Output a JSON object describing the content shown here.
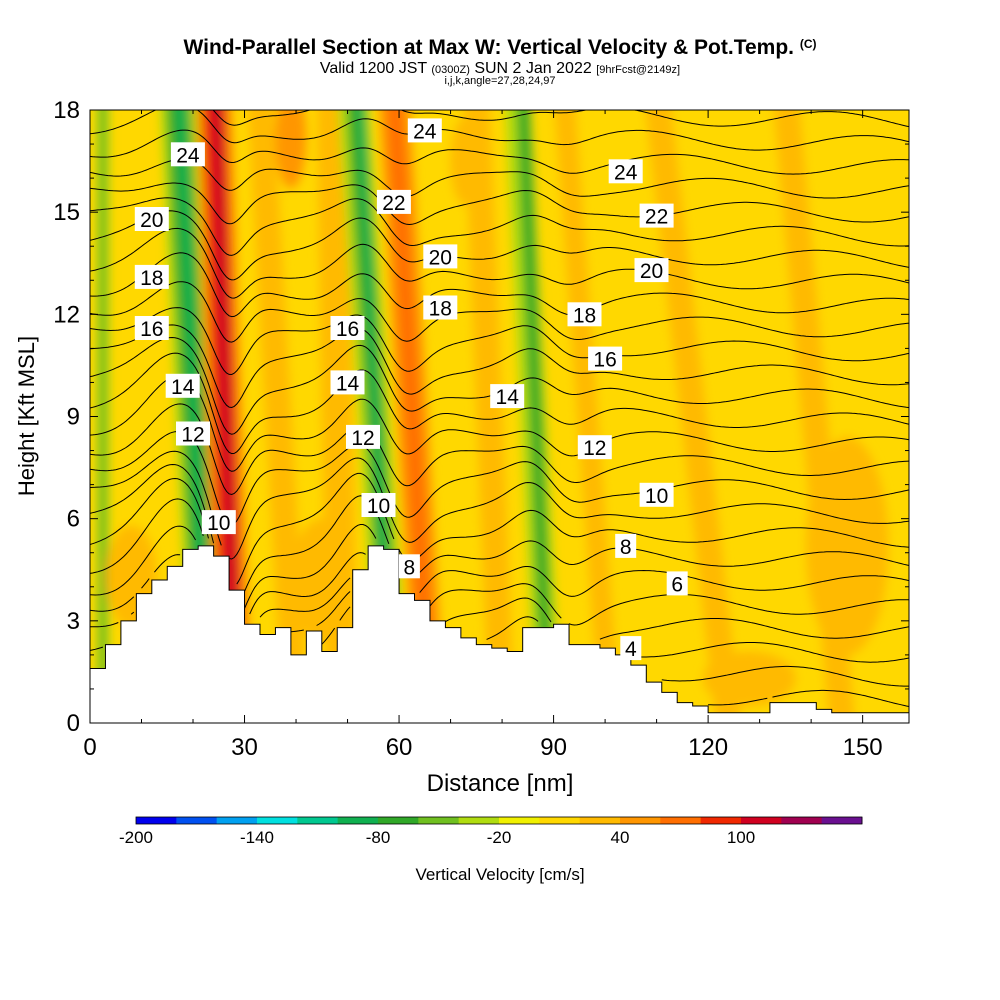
{
  "titles": {
    "main": "Wind-Parallel Section at Max W: Vertical Velocity & Pot.Temp.",
    "copyright": "(C)",
    "valid_a": "Valid 1200 JST",
    "valid_b": "(0300Z)",
    "valid_c": "SUN 2 Jan 2022",
    "valid_d": "[9hrFcst@2149z]",
    "indices": "i,j,k,angle=27,28,24,97"
  },
  "chart_data": {
    "type": "heatmap",
    "xlabel": "Distance [nm]",
    "ylabel": "Height [Kft MSL]",
    "xlim": [
      0,
      159
    ],
    "ylim": [
      0,
      18
    ],
    "xticks": [
      0,
      30,
      60,
      90,
      120,
      150
    ],
    "yticks": [
      0,
      3,
      6,
      9,
      12,
      15,
      18
    ],
    "grid": false,
    "colorbar": {
      "label": "Vertical Velocity [cm/s]",
      "tick_values": [
        -200,
        -140,
        -80,
        -20,
        40,
        100
      ],
      "levels": [
        -200,
        -180,
        -160,
        -140,
        -120,
        -100,
        -80,
        -60,
        -40,
        -20,
        0,
        20,
        40,
        60,
        80,
        100,
        120,
        140
      ],
      "colors": [
        "#0000ee",
        "#0050f0",
        "#00a0f0",
        "#00e0e0",
        "#00c890",
        "#10b050",
        "#30a828",
        "#70c020",
        "#b0dc10",
        "#f0f000",
        "#ffd800",
        "#ffba00",
        "#ff9600",
        "#ff6e00",
        "#f02800",
        "#d00020",
        "#a00050",
        "#6a1090"
      ]
    },
    "terrain_height_kft": {
      "distance": [
        0,
        3,
        6,
        9,
        12,
        15,
        18,
        21,
        24,
        27,
        30,
        33,
        36,
        39,
        42,
        45,
        48,
        51,
        54,
        57,
        60,
        63,
        66,
        69,
        72,
        75,
        78,
        81,
        84,
        87,
        90,
        93,
        96,
        99,
        102,
        105,
        108,
        111,
        114,
        117,
        120,
        123,
        126,
        129,
        132,
        135,
        138,
        141,
        144,
        147,
        150,
        153,
        156,
        159
      ],
      "height": [
        1.6,
        2.3,
        3.0,
        3.8,
        4.2,
        4.6,
        5.1,
        5.2,
        4.9,
        3.9,
        2.9,
        2.6,
        2.8,
        2.0,
        2.7,
        2.1,
        2.8,
        4.5,
        5.2,
        5.1,
        3.8,
        3.6,
        3.0,
        2.8,
        2.5,
        2.3,
        2.2,
        2.1,
        2.8,
        2.8,
        2.9,
        2.3,
        2.3,
        2.2,
        2.0,
        1.7,
        1.2,
        0.9,
        0.6,
        0.5,
        0.3,
        0.3,
        0.3,
        0.3,
        0.6,
        0.6,
        0.6,
        0.4,
        0.3,
        0.3,
        0.3,
        0.3,
        0.3,
        0.3
      ]
    },
    "theta_contours": {
      "levels": [
        4,
        6,
        8,
        10,
        12,
        14,
        16,
        18,
        20,
        22,
        24
      ],
      "labels": [
        {
          "text": "24",
          "x": 19,
          "y": 16.7
        },
        {
          "text": "24",
          "x": 65,
          "y": 17.4
        },
        {
          "text": "24",
          "x": 104,
          "y": 16.2
        },
        {
          "text": "22",
          "x": 59,
          "y": 15.3
        },
        {
          "text": "22",
          "x": 110,
          "y": 14.9
        },
        {
          "text": "20",
          "x": 12,
          "y": 14.8
        },
        {
          "text": "20",
          "x": 68,
          "y": 13.7
        },
        {
          "text": "20",
          "x": 109,
          "y": 13.3
        },
        {
          "text": "18",
          "x": 12,
          "y": 13.1
        },
        {
          "text": "18",
          "x": 68,
          "y": 12.2
        },
        {
          "text": "18",
          "x": 96,
          "y": 12.0
        },
        {
          "text": "16",
          "x": 12,
          "y": 11.6
        },
        {
          "text": "16",
          "x": 50,
          "y": 11.6
        },
        {
          "text": "16",
          "x": 100,
          "y": 10.7
        },
        {
          "text": "14",
          "x": 18,
          "y": 9.9
        },
        {
          "text": "14",
          "x": 50,
          "y": 10.0
        },
        {
          "text": "14",
          "x": 81,
          "y": 9.6
        },
        {
          "text": "12",
          "x": 20,
          "y": 8.5
        },
        {
          "text": "12",
          "x": 53,
          "y": 8.4
        },
        {
          "text": "12",
          "x": 98,
          "y": 8.1
        },
        {
          "text": "10",
          "x": 25,
          "y": 5.9
        },
        {
          "text": "10",
          "x": 56,
          "y": 6.4
        },
        {
          "text": "10",
          "x": 110,
          "y": 6.7
        },
        {
          "text": "8",
          "x": 62,
          "y": 4.6
        },
        {
          "text": "8",
          "x": 104,
          "y": 5.2
        },
        {
          "text": "6",
          "x": 114,
          "y": 4.1
        },
        {
          "text": "4",
          "x": 105,
          "y": 2.2
        }
      ]
    }
  }
}
